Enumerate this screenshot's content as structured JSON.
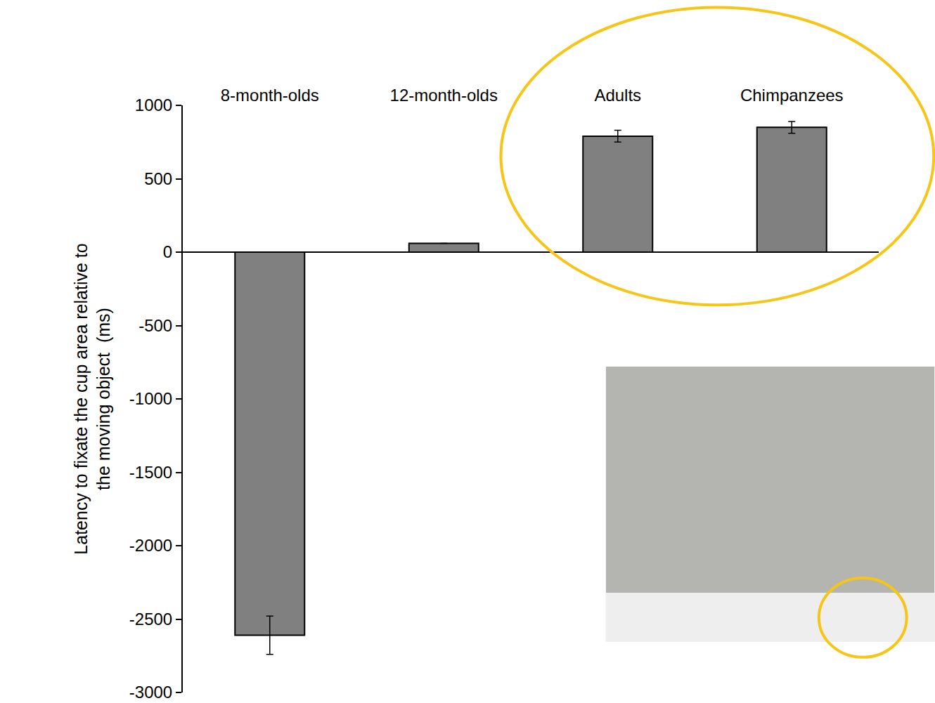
{
  "chart_data": {
    "type": "bar",
    "categories": [
      "8-month-olds",
      "12-month-olds",
      "Adults",
      "Chimpanzees"
    ],
    "values": [
      -2610,
      60,
      790,
      850
    ],
    "errors": [
      130,
      null,
      40,
      40
    ],
    "color": "#808080",
    "y_label": "Latency to fixate the cup area relative to the moving object  (ms)",
    "ylim": [
      -3000,
      1000
    ],
    "yticks": [
      -3000,
      -2500,
      -2000,
      -1500,
      -1000,
      -500,
      0,
      500,
      1000
    ],
    "grid": false
  }
}
